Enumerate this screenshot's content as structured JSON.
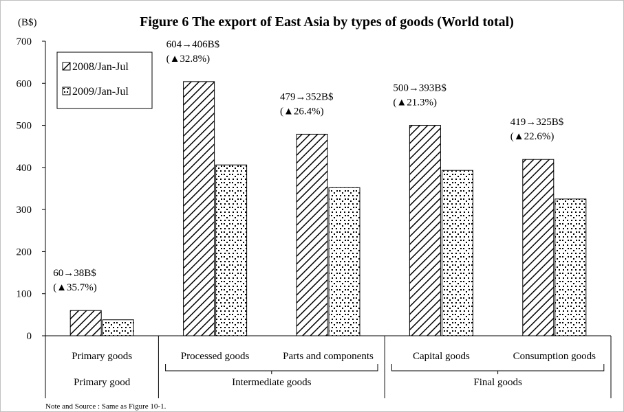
{
  "chart_data": {
    "type": "bar",
    "title": "Figure 6 The export of East Asia by types of goods (World total)",
    "ylabel": "(B$)",
    "ylim": [
      0,
      700
    ],
    "yticks": [
      0,
      100,
      200,
      300,
      400,
      500,
      600,
      700
    ],
    "grid": false,
    "legend_position": "top-left",
    "categories": [
      "Primary goods",
      "Processed goods",
      "Parts and components",
      "Capital goods",
      "Consumption goods"
    ],
    "groups": [
      {
        "label": "Primary good",
        "start": 0,
        "end": 0
      },
      {
        "label": "Intermediate goods",
        "start": 1,
        "end": 2
      },
      {
        "label": "Final goods",
        "start": 3,
        "end": 4
      }
    ],
    "series": [
      {
        "name": "2008/Jan-Jul",
        "values": [
          60,
          604,
          479,
          500,
          419
        ],
        "pattern": "hatch"
      },
      {
        "name": "2009/Jan-Jul",
        "values": [
          38,
          406,
          352,
          393,
          325
        ],
        "pattern": "dots"
      }
    ],
    "annotations": [
      {
        "category": 0,
        "line1": "60→38B$",
        "line2": "(▲35.7%)"
      },
      {
        "category": 1,
        "line1": "604→406B$",
        "line2": "(▲32.8%)"
      },
      {
        "category": 2,
        "line1": "479→352B$",
        "line2": "(▲26.4%)"
      },
      {
        "category": 3,
        "line1": "500→393B$",
        "line2": "(▲21.3%)"
      },
      {
        "category": 4,
        "line1": "419→325B$",
        "line2": "(▲22.6%)"
      }
    ],
    "note": "Note and Source : Same as Figure 10-1."
  }
}
